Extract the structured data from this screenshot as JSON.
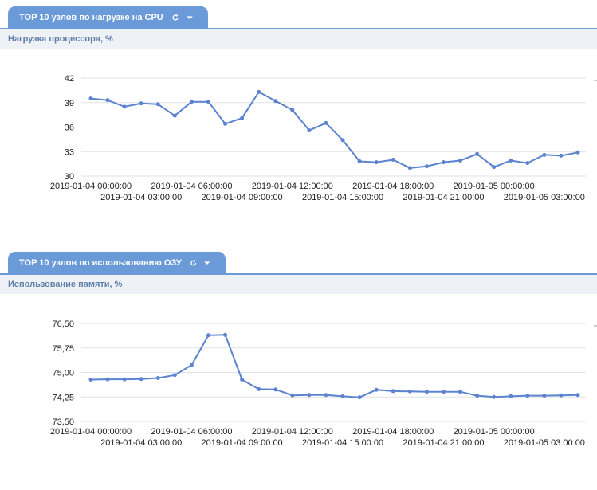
{
  "colors": {
    "tab_bg": "#6a9ad8",
    "subheader_bg": "#eef2f7",
    "subheader_text": "#5f7fa8",
    "series": "#5b83cf",
    "grid": "#e2e2e2"
  },
  "panels": [
    {
      "tab_title": "TOP 10 узлов по нагрузке на CPU",
      "refresh_icon": "refresh-icon",
      "dropdown_icon": "caret-down-icon",
      "subheader": "Нагрузка процессора, %"
    },
    {
      "tab_title": "TOP 10 узлов по использованию ОЗУ",
      "refresh_icon": "refresh-icon",
      "dropdown_icon": "caret-down-icon",
      "subheader": "Использование памяти, %"
    }
  ],
  "chart_data": [
    {
      "type": "line",
      "title": "Нагрузка процессора, %",
      "ylim": [
        30,
        42
      ],
      "yticks": [
        "30",
        "33",
        "36",
        "39",
        "42"
      ],
      "grid": true,
      "xticks_row1": [
        "2019-01-04 00:00:00",
        "2019-01-04 06:00:00",
        "2019-01-04 12:00:00",
        "2019-01-04 18:00:00",
        "2019-01-05 00:00:00"
      ],
      "xticks_row2": [
        "2019-01-04 03:00:00",
        "2019-01-04 09:00:00",
        "2019-01-04 15:00:00",
        "2019-01-04 21:00:00",
        "2019-01-05 03:00:00"
      ],
      "x": [
        "2019-01-04 00:00:00",
        "2019-01-04 01:00:00",
        "2019-01-04 02:00:00",
        "2019-01-04 03:00:00",
        "2019-01-04 04:00:00",
        "2019-01-04 05:00:00",
        "2019-01-04 06:00:00",
        "2019-01-04 07:00:00",
        "2019-01-04 08:00:00",
        "2019-01-04 09:00:00",
        "2019-01-04 10:00:00",
        "2019-01-04 11:00:00",
        "2019-01-04 12:00:00",
        "2019-01-04 13:00:00",
        "2019-01-04 14:00:00",
        "2019-01-04 15:00:00",
        "2019-01-04 16:00:00",
        "2019-01-04 17:00:00",
        "2019-01-04 18:00:00",
        "2019-01-04 19:00:00",
        "2019-01-04 20:00:00",
        "2019-01-04 21:00:00",
        "2019-01-04 22:00:00",
        "2019-01-04 23:00:00",
        "2019-01-05 00:00:00",
        "2019-01-05 01:00:00",
        "2019-01-05 02:00:00",
        "2019-01-05 03:00:00",
        "2019-01-05 04:00:00",
        "2019-01-05 05:00:00"
      ],
      "series": [
        {
          "values": [
            39.5,
            39.3,
            38.5,
            38.9,
            38.8,
            37.4,
            39.1,
            39.1,
            36.4,
            37.1,
            40.3,
            39.2,
            38.1,
            35.6,
            36.5,
            34.4,
            31.8,
            31.7,
            32.0,
            31.0,
            31.2,
            31.7,
            31.9,
            32.7,
            31.1,
            31.9,
            31.6,
            32.6,
            32.5,
            32.9
          ]
        }
      ]
    },
    {
      "type": "line",
      "title": "Использование памяти, %",
      "ylim": [
        73.5,
        76.5
      ],
      "yticks": [
        "73,50",
        "74,25",
        "75,00",
        "75,75",
        "76,50"
      ],
      "grid": true,
      "xticks_row1": [
        "2019-01-04 00:00:00",
        "2019-01-04 06:00:00",
        "2019-01-04 12:00:00",
        "2019-01-04 18:00:00",
        "2019-01-05 00:00:00"
      ],
      "xticks_row2": [
        "2019-01-04 03:00:00",
        "2019-01-04 09:00:00",
        "2019-01-04 15:00:00",
        "2019-01-04 21:00:00",
        "2019-01-05 03:00:00"
      ],
      "x": [
        "2019-01-04 00:00:00",
        "2019-01-04 01:00:00",
        "2019-01-04 02:00:00",
        "2019-01-04 03:00:00",
        "2019-01-04 04:00:00",
        "2019-01-04 05:00:00",
        "2019-01-04 06:00:00",
        "2019-01-04 07:00:00",
        "2019-01-04 08:00:00",
        "2019-01-04 09:00:00",
        "2019-01-04 10:00:00",
        "2019-01-04 11:00:00",
        "2019-01-04 12:00:00",
        "2019-01-04 13:00:00",
        "2019-01-04 14:00:00",
        "2019-01-04 15:00:00",
        "2019-01-04 16:00:00",
        "2019-01-04 17:00:00",
        "2019-01-04 18:00:00",
        "2019-01-04 19:00:00",
        "2019-01-04 20:00:00",
        "2019-01-04 21:00:00",
        "2019-01-04 22:00:00",
        "2019-01-04 23:00:00",
        "2019-01-05 00:00:00",
        "2019-01-05 01:00:00",
        "2019-01-05 02:00:00",
        "2019-01-05 03:00:00",
        "2019-01-05 04:00:00",
        "2019-01-05 05:00:00"
      ],
      "series": [
        {
          "values": [
            74.78,
            74.79,
            74.79,
            74.8,
            74.83,
            74.92,
            75.23,
            76.14,
            76.15,
            74.78,
            74.49,
            74.48,
            74.3,
            74.31,
            74.31,
            74.27,
            74.24,
            74.47,
            74.43,
            74.42,
            74.41,
            74.41,
            74.41,
            74.29,
            74.25,
            74.27,
            74.29,
            74.29,
            74.3,
            74.31
          ]
        }
      ]
    }
  ]
}
